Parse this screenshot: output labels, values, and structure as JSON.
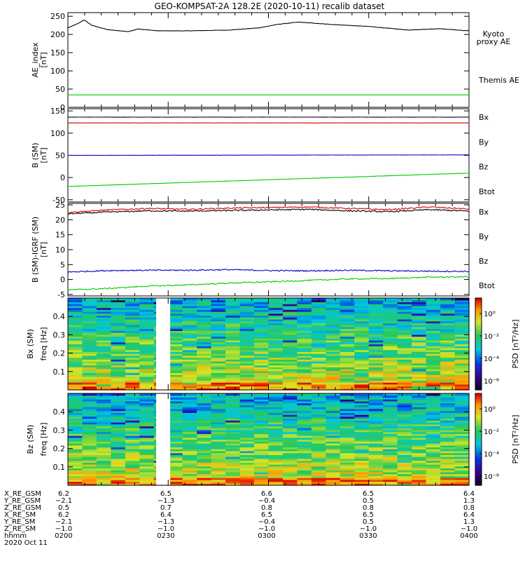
{
  "title": "GEO-KOMPSAT-2A 128.2E (2020-10-11) recalib dataset",
  "colors": {
    "black": "#000000",
    "red": "#e00000",
    "blue": "#0000cc",
    "green": "#00cc00",
    "legend_kyoto": "#22cc22"
  },
  "chart_data": [
    {
      "type": "line",
      "panel": "ae",
      "ylabel": "AE_index",
      "yunit": "[nT]",
      "ylim": [
        0,
        260
      ],
      "yticks": [
        0,
        50,
        100,
        150,
        200,
        250
      ],
      "time_range_hours": [
        2.0,
        4.0
      ],
      "legend": [
        "Kyoto",
        "proxy AE",
        "Themis AE"
      ],
      "series": [
        {
          "name": "Themis AE",
          "color": "#000000",
          "t": [
            2.0,
            2.05,
            2.08,
            2.12,
            2.2,
            2.3,
            2.35,
            2.45,
            2.6,
            2.8,
            2.95,
            3.05,
            3.15,
            3.3,
            3.5,
            3.7,
            3.85,
            4.0
          ],
          "v": [
            218,
            230,
            240,
            225,
            213,
            208,
            215,
            210,
            210,
            212,
            218,
            228,
            234,
            228,
            222,
            212,
            216,
            210
          ]
        },
        {
          "name": "Kyoto proxy AE",
          "color": "#00cc00",
          "t": [
            2.0,
            4.0
          ],
          "v": [
            34,
            34
          ]
        }
      ]
    },
    {
      "type": "line",
      "panel": "b",
      "ylabel": "B (SM)",
      "yunit": "[nT]",
      "ylim": [
        -55,
        155
      ],
      "yticks": [
        -50,
        0,
        50,
        100,
        150
      ],
      "legend": [
        "Bx",
        "By",
        "Bz",
        "Btot"
      ],
      "series": [
        {
          "name": "Btot",
          "color": "#000000",
          "t": [
            2.0,
            4.0
          ],
          "v": [
            136,
            136
          ]
        },
        {
          "name": "Bz",
          "color": "#e00000",
          "t": [
            2.0,
            4.0
          ],
          "v": [
            123,
            123
          ]
        },
        {
          "name": "Bx",
          "color": "#0000cc",
          "t": [
            2.0,
            4.0
          ],
          "v": [
            50,
            51
          ]
        },
        {
          "name": "By",
          "color": "#00cc00",
          "t": [
            2.0,
            4.0
          ],
          "v": [
            -20,
            10
          ]
        }
      ]
    },
    {
      "type": "line",
      "panel": "db",
      "ylabel": "B (SM)-IGRF (SM)",
      "yunit": "[nT]",
      "ylim": [
        -5.5,
        25.5
      ],
      "yticks": [
        -5,
        0,
        5,
        10,
        15,
        20,
        25
      ],
      "legend": [
        "Bx",
        "By",
        "Bz",
        "Btot"
      ],
      "series": [
        {
          "name": "Bz",
          "color": "#e00000",
          "t": [
            2.0,
            2.2,
            2.4,
            2.6,
            2.8,
            3.0,
            3.2,
            3.4,
            3.6,
            3.8,
            4.0
          ],
          "v": [
            22.5,
            23.3,
            23.8,
            23.5,
            23.9,
            24.1,
            24.3,
            23.8,
            23.4,
            24.3,
            23.6
          ]
        },
        {
          "name": "Btot",
          "color": "#000000",
          "t": [
            2.0,
            2.2,
            2.4,
            2.6,
            2.8,
            3.0,
            3.2,
            3.4,
            3.6,
            3.8,
            4.0
          ],
          "v": [
            22.0,
            22.6,
            23.0,
            22.9,
            23.1,
            23.3,
            23.5,
            23.0,
            22.7,
            23.4,
            22.9
          ]
        },
        {
          "name": "Bx",
          "color": "#0000cc",
          "t": [
            2.0,
            2.2,
            2.4,
            2.6,
            2.8,
            3.0,
            3.2,
            3.4,
            3.6,
            3.8,
            4.0
          ],
          "v": [
            2.5,
            3.0,
            3.1,
            3.1,
            3.3,
            3.0,
            2.9,
            3.1,
            2.9,
            2.8,
            2.7
          ]
        },
        {
          "name": "By",
          "color": "#00cc00",
          "t": [
            2.0,
            2.2,
            2.4,
            2.6,
            2.8,
            3.0,
            3.2,
            3.4,
            3.6,
            3.8,
            4.0
          ],
          "v": [
            -3.5,
            -3.0,
            -2.2,
            -1.8,
            -1.2,
            -0.8,
            -0.3,
            0.2,
            0.3,
            0.8,
            0.9
          ]
        }
      ]
    },
    {
      "type": "heatmap",
      "panel": "spec_bx",
      "ylabel": "Bx (SM)",
      "ylabel2": "freq [Hz]",
      "ylim": [
        0,
        0.5
      ],
      "yticks": [
        0.1,
        0.2,
        0.3,
        0.4
      ],
      "colorbar_label": "PSD [nT²/Hz]",
      "colorbar_ticks": [
        "10⁰",
        "10⁻²",
        "10⁻⁴",
        "10⁻⁶"
      ],
      "data_gap_hours": [
        2.44,
        2.51
      ]
    },
    {
      "type": "heatmap",
      "panel": "spec_bz",
      "ylabel": "Bz (SM)",
      "ylabel2": "freq [Hz]",
      "ylim": [
        0,
        0.5
      ],
      "yticks": [
        0.1,
        0.2,
        0.3,
        0.4
      ],
      "colorbar_label": "PSD [nT²/Hz]",
      "colorbar_ticks": [
        "10⁰",
        "10⁻²",
        "10⁻⁴",
        "10⁻⁶"
      ],
      "data_gap_hours": [
        2.44,
        2.51
      ]
    }
  ],
  "ephemeris": {
    "rows": [
      {
        "label": "X_RE_GSM",
        "values": [
          "6.2",
          "6.5",
          "6.6",
          "6.5",
          "6.4"
        ]
      },
      {
        "label": "Y_RE_GSM",
        "values": [
          "−2.1",
          "−1.3",
          "−0.4",
          "0.5",
          "1.3"
        ]
      },
      {
        "label": "Z_RE_GSM",
        "values": [
          "0.5",
          "0.7",
          "0.8",
          "0.8",
          "0.8"
        ]
      },
      {
        "label": "X_RE_SM",
        "values": [
          "6.2",
          "6.4",
          "6.5",
          "6.5",
          "6.4"
        ]
      },
      {
        "label": "Y_RE_SM",
        "values": [
          "−2.1",
          "−1.3",
          "−0.4",
          "0.5",
          "1.3"
        ]
      },
      {
        "label": "Z_RE_SM",
        "values": [
          "−1.0",
          "−1.0",
          "−1.0",
          "−1.0",
          "−1.0"
        ]
      },
      {
        "label": "hhmm",
        "values": [
          "0200",
          "0230",
          "0300",
          "0330",
          "0400"
        ]
      }
    ],
    "date": "2020 Oct 11"
  }
}
